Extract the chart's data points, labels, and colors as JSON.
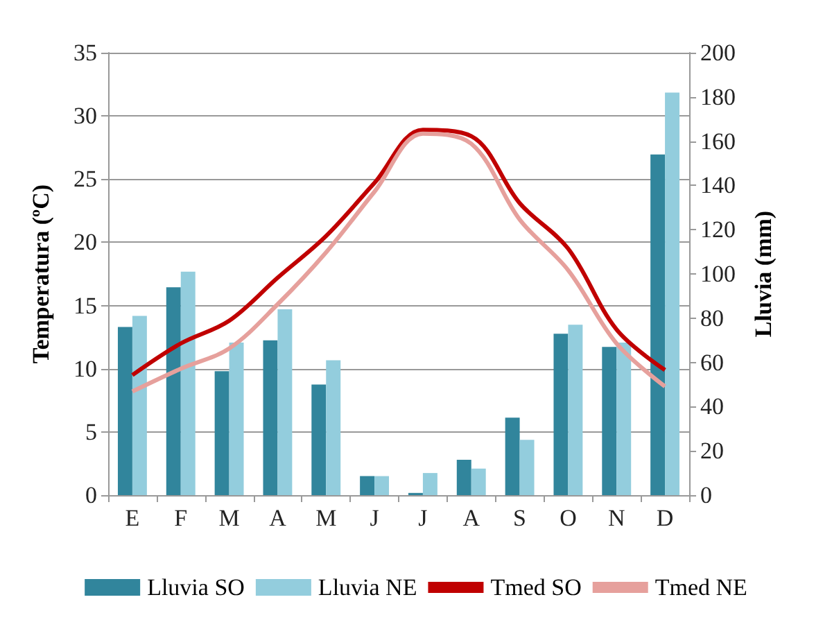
{
  "chart_data": {
    "type": "bar",
    "categories": [
      "E",
      "F",
      "M",
      "A",
      "M",
      "J",
      "J",
      "A",
      "S",
      "O",
      "N",
      "D"
    ],
    "ylabel": "Temperatura (ºC)",
    "y2label": "Lluvia (mm)",
    "ylim": [
      0,
      35
    ],
    "yticks": [
      0,
      5,
      10,
      15,
      20,
      25,
      30,
      35
    ],
    "y2lim": [
      0,
      200
    ],
    "y2ticks": [
      0,
      20,
      40,
      60,
      80,
      100,
      120,
      140,
      160,
      180,
      200
    ],
    "series": [
      {
        "name": "Lluvia SO",
        "axis": "y2",
        "color": "#31859c",
        "values": [
          76,
          94,
          56,
          70,
          50,
          8.6,
          1,
          16,
          35,
          73,
          67,
          154
        ]
      },
      {
        "name": "Lluvia NE",
        "axis": "y2",
        "color": "#93cddd",
        "values": [
          81,
          101,
          69,
          84,
          61,
          8.6,
          10,
          12,
          25,
          77,
          69,
          182
        ]
      },
      {
        "name": "Tmed SO",
        "type": "line",
        "color": "#c00000",
        "values": [
          9.5,
          12,
          13.8,
          17.2,
          20.5,
          24.7,
          28.9,
          28.4,
          23.1,
          19.5,
          13.1,
          9.9
        ]
      },
      {
        "name": "Tmed NE",
        "type": "line",
        "color": "#e6a09c",
        "values": [
          8.2,
          10,
          11.6,
          15.1,
          19.2,
          24,
          28.6,
          27.8,
          21.8,
          17.8,
          12,
          8.6
        ]
      }
    ],
    "grid": "y",
    "legend": "bottom",
    "marker": "none"
  }
}
